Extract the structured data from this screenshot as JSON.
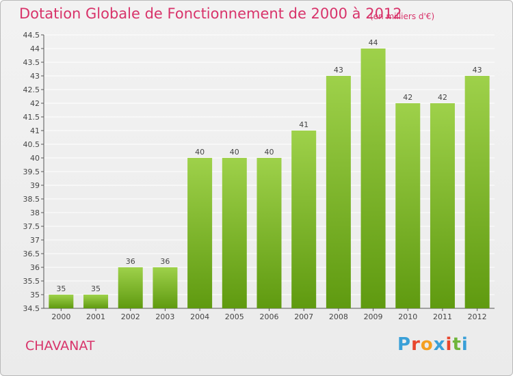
{
  "header": {
    "title": "Dotation Globale de Fonctionnement de 2000 à 2012",
    "unit": "(en milliers d'€)"
  },
  "footer": {
    "commune": "CHAVANAT",
    "logo_text": "Proxiti"
  },
  "colors": {
    "title": "#d8336a",
    "bar_top": "#9ed14a",
    "bar_bottom": "#5f9a10",
    "gridline": "#ffffff",
    "logo_letters": [
      "#3aa0d8",
      "#e8452c",
      "#f4a020",
      "#3aa0d8",
      "#e8452c",
      "#6fb53a",
      "#3aa0d8"
    ]
  },
  "chart_data": {
    "type": "bar",
    "categories": [
      "2000",
      "2001",
      "2002",
      "2003",
      "2004",
      "2005",
      "2006",
      "2007",
      "2008",
      "2009",
      "2010",
      "2011",
      "2012"
    ],
    "values": [
      35,
      35,
      36,
      36,
      40,
      40,
      40,
      41,
      43,
      44,
      42,
      42,
      43
    ],
    "ylim": [
      34.5,
      44.5
    ],
    "yticks": [
      34.5,
      35,
      35.5,
      36,
      36.5,
      37,
      37.5,
      38,
      38.5,
      39,
      39.5,
      40,
      40.5,
      41,
      41.5,
      42,
      42.5,
      43,
      43.5,
      44,
      44.5
    ],
    "grid": true,
    "xlabel": "",
    "ylabel": ""
  }
}
